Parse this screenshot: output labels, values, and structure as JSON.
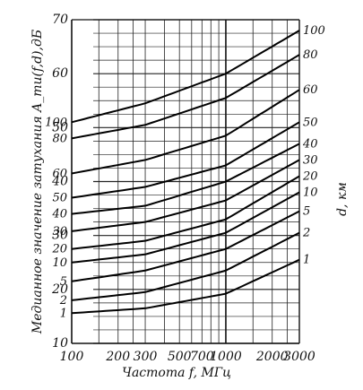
{
  "chart_data": {
    "type": "line",
    "title": "",
    "xlabel": "Частота f, МГц",
    "ylabel": "Медианное значение затухания A_mu(f,d),дБ",
    "right_axis_label": "d, км",
    "x_scale": "log",
    "xlim": [
      100,
      3000
    ],
    "ylim": [
      10,
      70
    ],
    "x_ticks": [
      100,
      200,
      300,
      500,
      700,
      1000,
      2000,
      3000
    ],
    "x_tick_labels": [
      "100",
      "200",
      "300",
      "500",
      "700",
      "1000",
      "2000",
      "3000"
    ],
    "y_ticks": [
      10,
      20,
      30,
      40,
      50,
      60,
      70
    ],
    "y_tick_labels": [
      "10",
      "20",
      "30",
      "40",
      "50",
      "60",
      "70"
    ],
    "grid": true,
    "series": [
      {
        "name": "1",
        "x": [
          100,
          300,
          1000,
          3000
        ],
        "y": [
          15.6,
          16.5,
          19.2,
          25.5
        ]
      },
      {
        "name": "2",
        "x": [
          100,
          300,
          1000,
          3000
        ],
        "y": [
          18.0,
          19.5,
          23.5,
          30.5
        ]
      },
      {
        "name": "5",
        "x": [
          100,
          300,
          1000,
          3000
        ],
        "y": [
          21.5,
          23.5,
          27.5,
          34.5
        ]
      },
      {
        "name": "10",
        "x": [
          100,
          300,
          1000,
          3000
        ],
        "y": [
          25.0,
          26.5,
          30.5,
          38.0
        ]
      },
      {
        "name": "20",
        "x": [
          100,
          300,
          1000,
          3000
        ],
        "y": [
          27.5,
          29.0,
          33.0,
          41.0
        ]
      },
      {
        "name": "30",
        "x": [
          100,
          300,
          1000,
          3000
        ],
        "y": [
          30.8,
          32.5,
          36.5,
          44.0
        ]
      },
      {
        "name": "40",
        "x": [
          100,
          300,
          1000,
          3000
        ],
        "y": [
          34.0,
          35.5,
          40.0,
          47.0
        ]
      },
      {
        "name": "50",
        "x": [
          100,
          300,
          1000,
          3000
        ],
        "y": [
          37.0,
          39.0,
          43.0,
          51.0
        ]
      },
      {
        "name": "60",
        "x": [
          100,
          300,
          1000,
          3000
        ],
        "y": [
          41.5,
          44.0,
          48.5,
          57.0
        ]
      },
      {
        "name": "80",
        "x": [
          100,
          300,
          1000,
          3000
        ],
        "y": [
          48.0,
          50.5,
          55.5,
          63.5
        ]
      },
      {
        "name": "100",
        "x": [
          100,
          300,
          1000,
          3000
        ],
        "y": [
          51.0,
          54.5,
          60.0,
          68.0
        ]
      }
    ]
  }
}
